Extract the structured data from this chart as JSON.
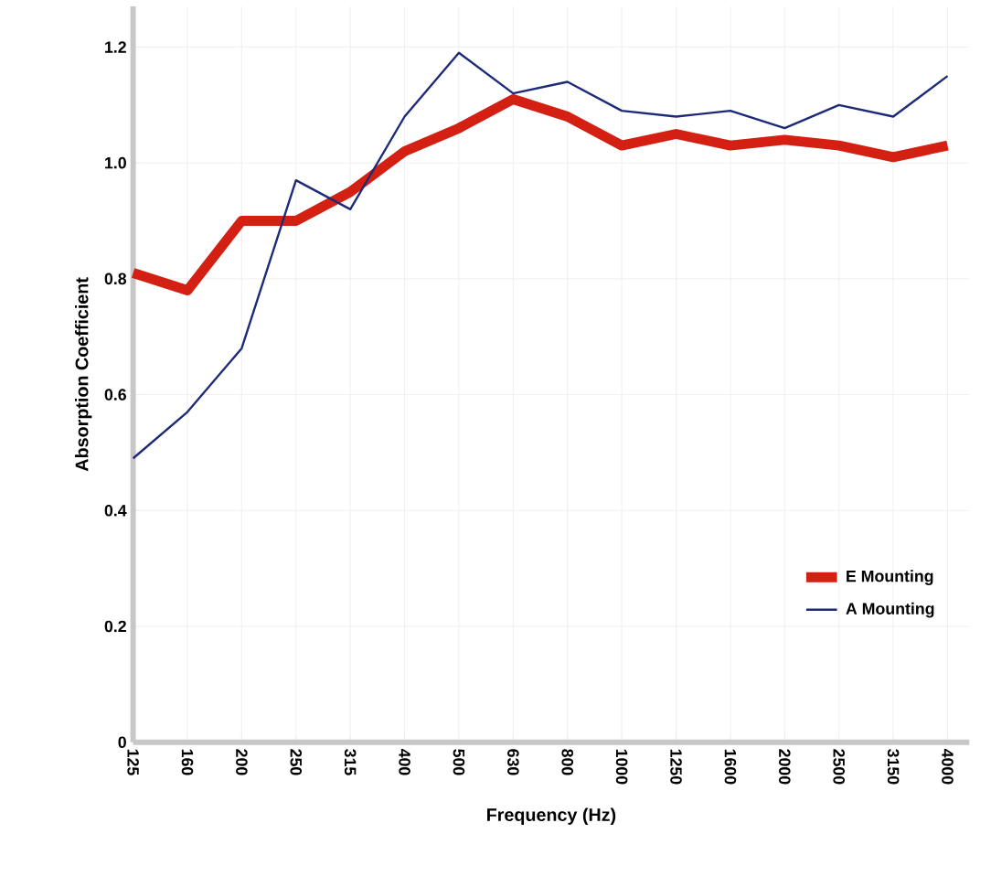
{
  "chart_data": {
    "type": "line",
    "xlabel": "Frequency (Hz)",
    "ylabel": "Absorption Coefficient",
    "categories": [
      "125",
      "160",
      "200",
      "250",
      "315",
      "400",
      "500",
      "630",
      "800",
      "1000",
      "1250",
      "1600",
      "2000",
      "2500",
      "3150",
      "4000"
    ],
    "series": [
      {
        "name": "E Mounting",
        "color": "#d42012",
        "values": [
          0.81,
          0.78,
          0.9,
          0.9,
          0.95,
          1.02,
          1.06,
          1.11,
          1.08,
          1.03,
          1.05,
          1.03,
          1.04,
          1.03,
          1.01,
          1.03
        ]
      },
      {
        "name": "A Mounting",
        "color": "#1c2a78",
        "values": [
          0.49,
          0.57,
          0.68,
          0.97,
          0.92,
          1.08,
          1.19,
          1.12,
          1.14,
          1.09,
          1.08,
          1.09,
          1.06,
          1.1,
          1.08,
          1.15
        ]
      }
    ],
    "ylim": [
      0,
      1.27
    ],
    "yticks": [
      0,
      0.2,
      0.4,
      0.6,
      0.8,
      {
        "value": 1,
        "label": "1.0"
      },
      1.2
    ],
    "grid": true,
    "legend": "bottom right",
    "marker": "none",
    "line_style": "solid"
  }
}
